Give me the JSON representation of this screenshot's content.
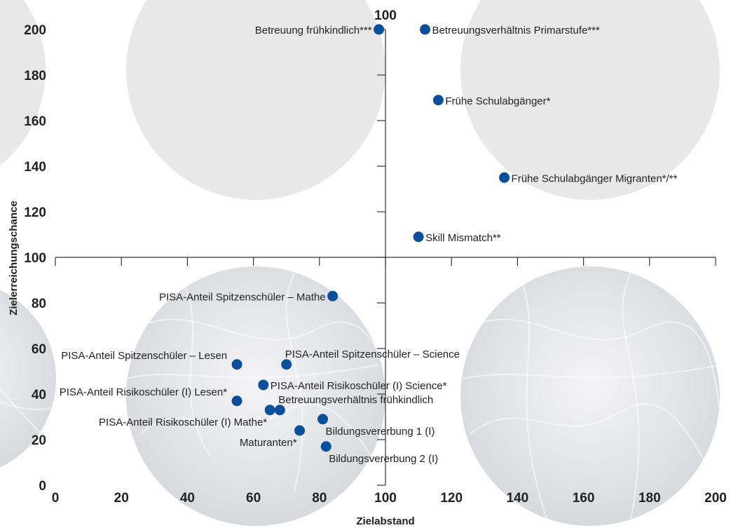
{
  "chart_data": {
    "type": "scatter",
    "xlabel": "Zielabstand",
    "ylabel": "Zielerreichungschance",
    "xlim": [
      0,
      200
    ],
    "ylim": [
      0,
      200
    ],
    "x_ticks": [
      "0",
      "20",
      "40",
      "60",
      "80",
      "100",
      "120",
      "140",
      "160",
      "180",
      "200"
    ],
    "y_ticks": [
      "0",
      "20",
      "40",
      "60",
      "80",
      "100",
      "120",
      "140",
      "160",
      "180",
      "200"
    ],
    "axes_cross": {
      "x": 100,
      "y": 100
    },
    "grid": false,
    "colors": {
      "point": "#0a4f9c",
      "background_circles": "#e6e6e6",
      "text": "#222222"
    },
    "points": [
      {
        "label": "Betreuung frühkindlich***",
        "x": 98,
        "y": 200,
        "label_side": "left"
      },
      {
        "label": "Betreuungsverhältnis Primarstufe***",
        "x": 112,
        "y": 200,
        "label_side": "right"
      },
      {
        "label": "Frühe Schulabgänger*",
        "x": 116,
        "y": 169,
        "label_side": "right"
      },
      {
        "label": "Frühe Schulabgänger Migranten*/**",
        "x": 136,
        "y": 135,
        "label_side": "right"
      },
      {
        "label": "Skill Mismatch**",
        "x": 110,
        "y": 109,
        "label_side": "right"
      },
      {
        "label": "PISA-Anteil Spitzenschüler – Mathe",
        "x": 84,
        "y": 83,
        "label_side": "left"
      },
      {
        "label": "PISA-Anteil Spitzenschüler – Lesen",
        "x": 55,
        "y": 53,
        "label_side": "above-left"
      },
      {
        "label": "PISA-Anteil Spitzenschüler – Science",
        "x": 70,
        "y": 53,
        "label_side": "above-right"
      },
      {
        "label": "PISA-Anteil Risikoschüler (I) Science*",
        "x": 63,
        "y": 44,
        "label_side": "right"
      },
      {
        "label": "PISA-Anteil Risikoschüler (I) Lesen*",
        "x": 55,
        "y": 37,
        "label_side": "above-left"
      },
      {
        "label": "PISA-Anteil Risikoschüler (I) Mathe*",
        "x": 65,
        "y": 33,
        "label_side": "below-left"
      },
      {
        "label": "Betreuungsverhältnis frühkindlich",
        "x": 68,
        "y": 33,
        "label_side": "above-right"
      },
      {
        "label": "Bildungsvererbung 1 (I)",
        "x": 81,
        "y": 29,
        "label_side": "below-right"
      },
      {
        "label": "Maturanten*",
        "x": 74,
        "y": 24,
        "label_side": "below-left"
      },
      {
        "label": "Bildungsvererbung 2 (I)",
        "x": 82,
        "y": 17,
        "label_side": "below-right"
      }
    ]
  }
}
